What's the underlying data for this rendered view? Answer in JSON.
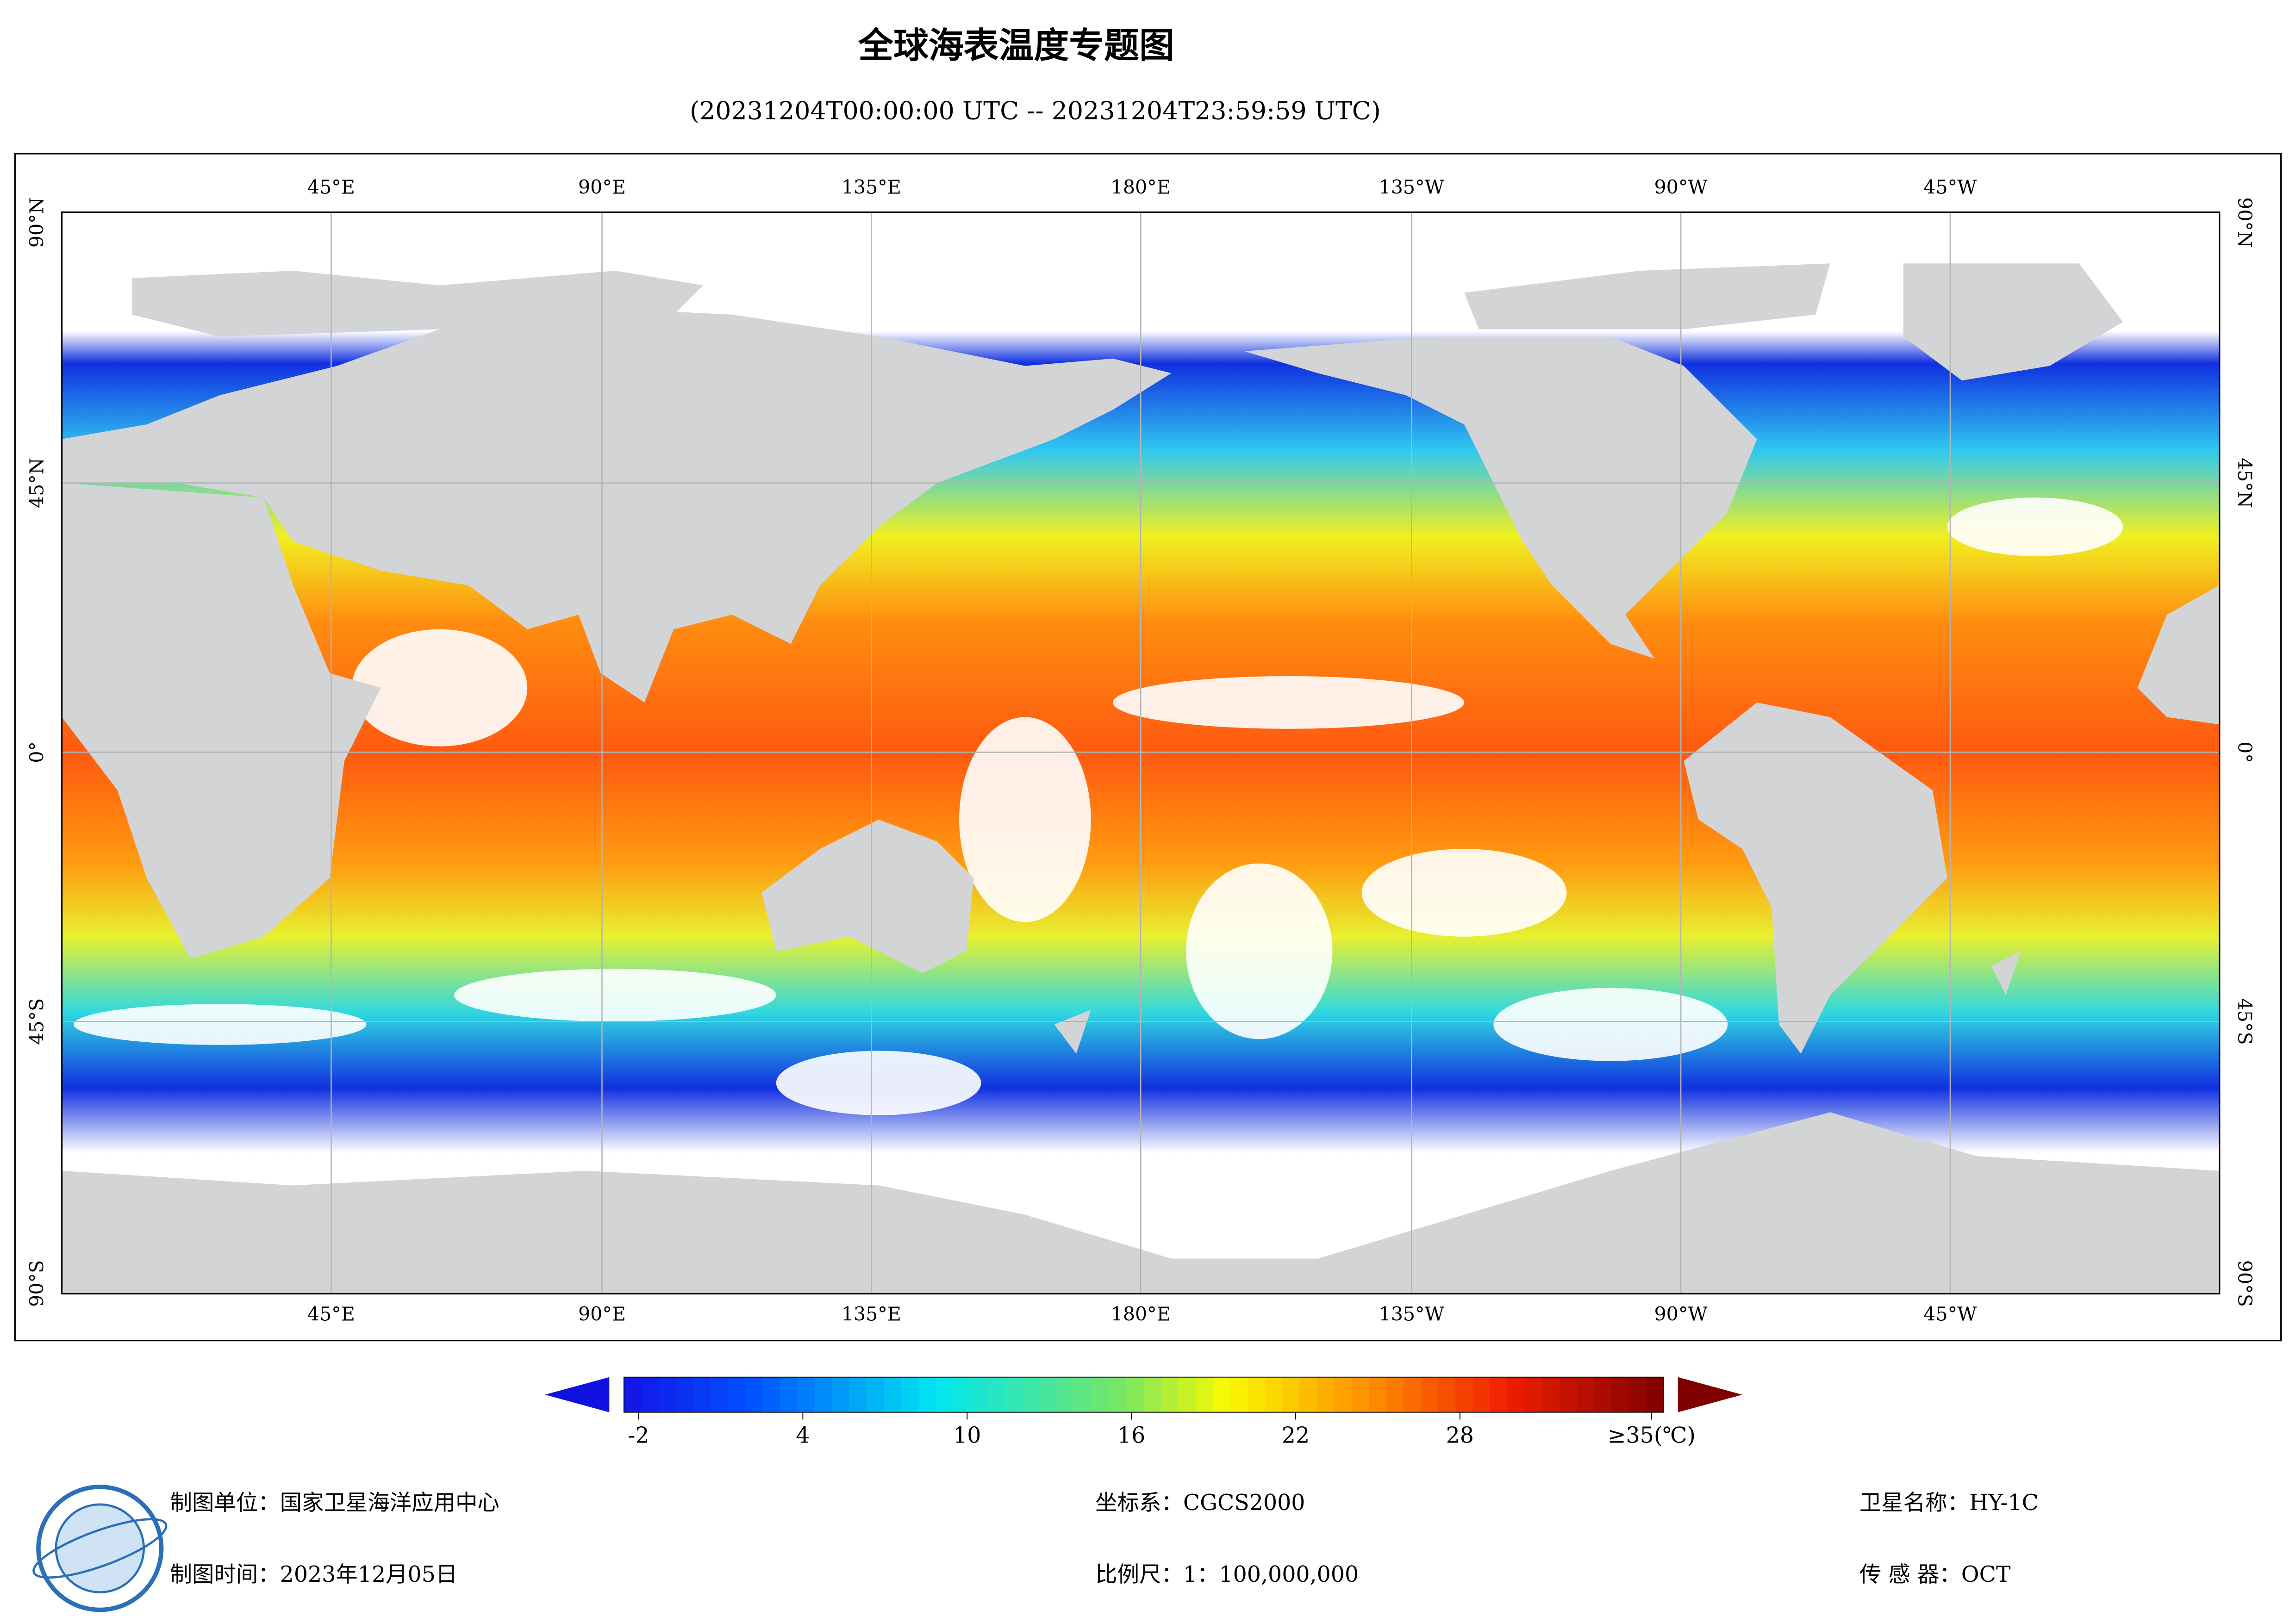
{
  "header": {
    "title": "全球海表温度专题图",
    "subtitle": "(20231204T00:00:00 UTC -- 20231204T23:59:59 UTC)"
  },
  "map": {
    "lon_labels": [
      "45°E",
      "90°E",
      "135°E",
      "180°E",
      "135°W",
      "90°W",
      "45°W"
    ],
    "lat_labels": [
      "90°N",
      "45°N",
      "0°",
      "45°S",
      "90°S"
    ]
  },
  "colorbar": {
    "ticks": [
      -2,
      4,
      10,
      16,
      22,
      28,
      {
        "value": 35,
        "label": "≥35(℃)"
      }
    ]
  },
  "footer": {
    "unit": "制图单位：国家卫星海洋应用中心",
    "date": "制图时间：2023年12月05日",
    "crs": "坐标系：CGCS2000",
    "scale": "比例尺：1：100,000,000",
    "satellite": "卫星名称：HY-1C",
    "sensor": "传 感 器：OCT"
  }
}
